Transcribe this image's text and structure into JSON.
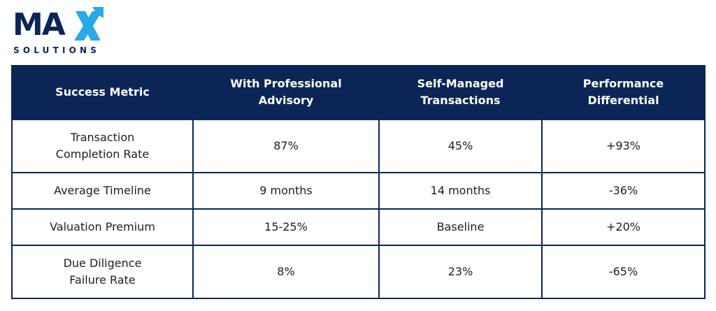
{
  "logo": {
    "main": "MA",
    "accent": "X",
    "sub": "SOLUTIONS",
    "colors": {
      "navy": "#0b2557",
      "accent": "#29a9e6"
    }
  },
  "table": {
    "headers": [
      [
        "Success Metric"
      ],
      [
        "With Professional",
        "Advisory"
      ],
      [
        "Self-Managed",
        "Transactions"
      ],
      [
        "Performance",
        "Differential"
      ]
    ],
    "rows": [
      {
        "metric": [
          "Transaction",
          "Completion Rate"
        ],
        "advisory": "87%",
        "self_managed": "45%",
        "differential": "+93%"
      },
      {
        "metric": [
          "Average Timeline"
        ],
        "advisory": "9 months",
        "self_managed": "14 months",
        "differential": "-36%"
      },
      {
        "metric": [
          "Valuation Premium"
        ],
        "advisory": "15-25%",
        "self_managed": "Baseline",
        "differential": "+20%"
      },
      {
        "metric": [
          "Due Diligence",
          "Failure Rate"
        ],
        "advisory": "8%",
        "self_managed": "23%",
        "differential": "-65%"
      }
    ],
    "colors": {
      "header_bg": "#0b2557",
      "header_text": "#ffffff",
      "border": "#0b2557"
    }
  }
}
